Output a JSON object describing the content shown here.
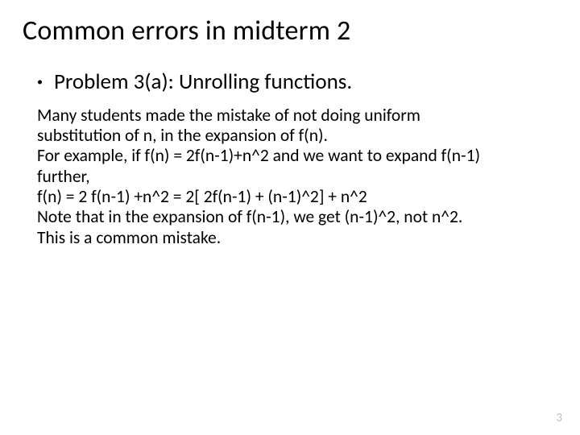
{
  "slide": {
    "title": "Common errors in midterm 2",
    "bullet": {
      "marker": "•",
      "text": "Problem 3(a): Unrolling functions."
    },
    "body": {
      "line1": "Many students made the mistake of not doing uniform",
      "line2": "substitution of n, in the expansion of f(n).",
      "line3": "For example, if f(n) = 2f(n-1)+n^2 and we want to expand f(n-1)",
      "line4": "further,",
      "line5": "f(n) = 2 f(n-1)  +n^2 = 2[ 2f(n-1) + (n-1)^2] + n^2",
      "line6": "Note that in the expansion of f(n-1), we get (n-1)^2, not n^2.",
      "line7": "This is a common mistake."
    },
    "page_number": "3",
    "colors": {
      "background": "#ffffff",
      "text": "#000000",
      "page_number": "#bfbfbf"
    },
    "typography": {
      "title_fontsize_pt": 26,
      "bullet_fontsize_pt": 20,
      "body_fontsize_pt": 16,
      "pagenum_fontsize_pt": 11,
      "font_family": "Calibri"
    }
  }
}
